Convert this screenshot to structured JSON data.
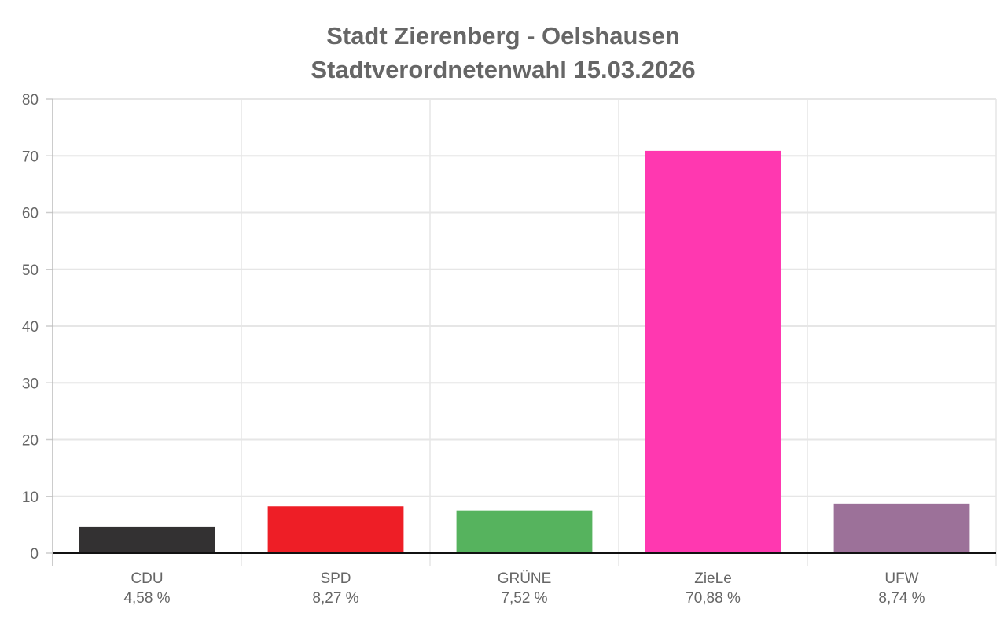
{
  "chart_data": {
    "type": "bar",
    "title": [
      "Stadt Zierenberg - Oelshausen",
      "Stadtverordnetenwahl 15.03.2026"
    ],
    "categories": [
      "CDU",
      "SPD",
      "GRÜNE",
      "ZieLe",
      "UFW"
    ],
    "values": [
      4.58,
      8.27,
      7.52,
      70.88,
      8.74
    ],
    "value_labels": [
      "4,58 %",
      "8,27 %",
      "7,52 %",
      "70,88 %",
      "8,74 %"
    ],
    "colors": [
      "#333132",
      "#EE1E26",
      "#56B35E",
      "#FF38B0",
      "#9C7199"
    ],
    "ylim": [
      0,
      80
    ],
    "yticks": [
      0,
      10,
      20,
      30,
      40,
      50,
      60,
      70,
      80
    ],
    "xlabel": "",
    "ylabel": "",
    "grid": true,
    "legend": "none"
  }
}
